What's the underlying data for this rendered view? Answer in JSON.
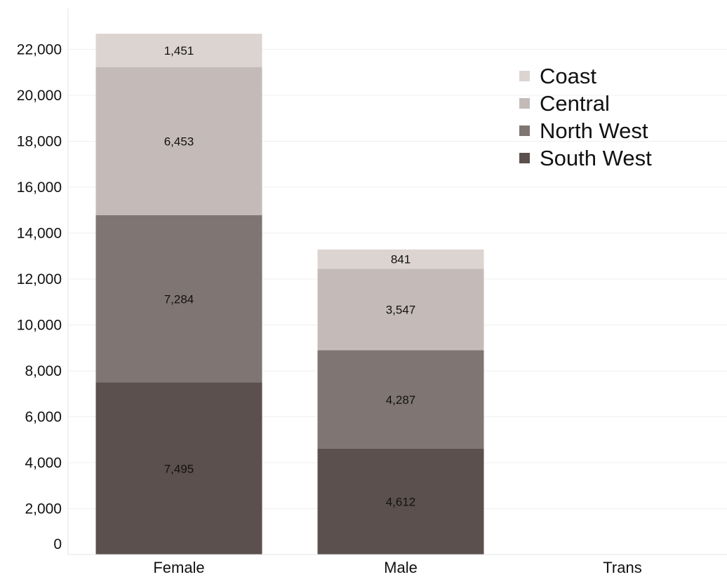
{
  "chart_data": {
    "type": "bar",
    "stacked": true,
    "categories": [
      "Female",
      "Male",
      "Trans"
    ],
    "series": [
      {
        "name": "South West",
        "values": [
          7495,
          4612,
          0
        ],
        "color": "#5b504d"
      },
      {
        "name": "North West",
        "values": [
          7284,
          4287,
          0
        ],
        "color": "#7f7673"
      },
      {
        "name": "Central",
        "values": [
          6453,
          3547,
          0
        ],
        "color": "#c4bbb8"
      },
      {
        "name": "Coast",
        "values": [
          1451,
          841,
          0
        ],
        "color": "#dcd4d1"
      }
    ],
    "data_labels": [
      [
        "7,495",
        "4,612",
        ""
      ],
      [
        "7,284",
        "4,287",
        ""
      ],
      [
        "6,453",
        "3,547",
        ""
      ],
      [
        "1,451",
        "841",
        ""
      ]
    ],
    "y_ticks": [
      "0",
      "2,000",
      "4,000",
      "6,000",
      "8,000",
      "10,000",
      "12,000",
      "14,000",
      "16,000",
      "18,000",
      "20,000",
      "22,000"
    ],
    "legend_order": [
      "Coast",
      "Central",
      "North West",
      "South West"
    ],
    "legend_placement": "top-right",
    "ylim": [
      0,
      23000
    ],
    "grid": true,
    "title": "",
    "xlabel": "",
    "ylabel": ""
  }
}
